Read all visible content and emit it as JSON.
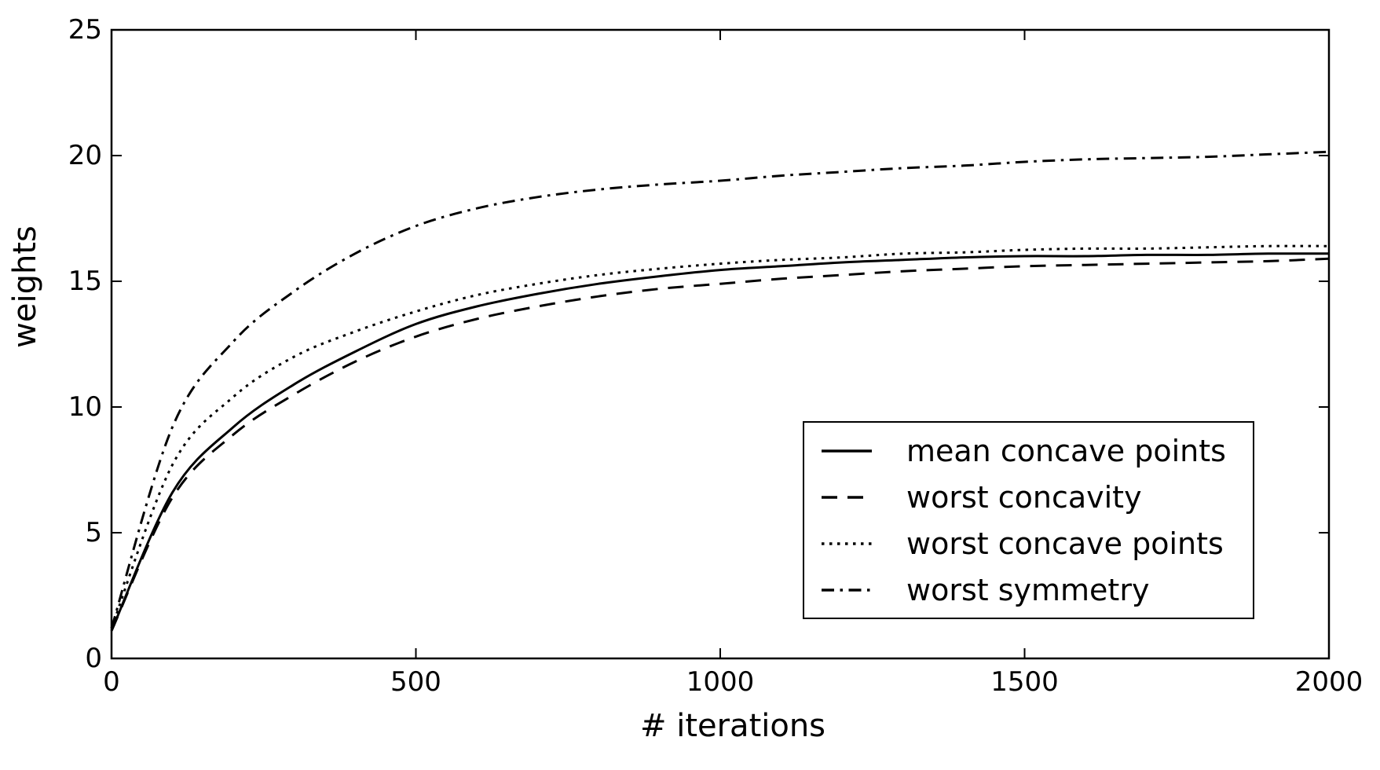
{
  "figure": {
    "background_color": "#ffffff",
    "line_color": "#000000"
  },
  "chart_data": {
    "type": "line",
    "title": "",
    "xlabel": "# iterations",
    "ylabel": "weights",
    "xlim": [
      0,
      2000
    ],
    "ylim": [
      0,
      25
    ],
    "xticks": [
      0,
      500,
      1000,
      1500,
      2000
    ],
    "yticks": [
      0,
      5,
      10,
      15,
      20,
      25
    ],
    "grid": false,
    "legend_position": "lower-right-inside",
    "x": [
      0,
      100,
      200,
      300,
      400,
      500,
      600,
      700,
      800,
      900,
      1000,
      1100,
      1200,
      1300,
      1400,
      1500,
      1600,
      1700,
      1800,
      1900,
      2000
    ],
    "series": [
      {
        "name": "mean concave points",
        "linestyle": "solid",
        "color": "#000000",
        "values": [
          1.1,
          6.6,
          9.2,
          10.9,
          12.2,
          13.3,
          14.0,
          14.5,
          14.9,
          15.2,
          15.45,
          15.6,
          15.75,
          15.85,
          15.95,
          16.0,
          16.0,
          16.05,
          16.05,
          16.1,
          16.1
        ]
      },
      {
        "name": "worst concavity",
        "linestyle": "dashed",
        "color": "#000000",
        "values": [
          1.1,
          6.4,
          8.9,
          10.5,
          11.8,
          12.8,
          13.5,
          14.0,
          14.4,
          14.7,
          14.9,
          15.1,
          15.25,
          15.4,
          15.5,
          15.6,
          15.65,
          15.7,
          15.75,
          15.8,
          15.9
        ]
      },
      {
        "name": "worst concave points",
        "linestyle": "dotted",
        "color": "#000000",
        "values": [
          1.2,
          7.7,
          10.4,
          12.0,
          13.0,
          13.8,
          14.45,
          14.9,
          15.25,
          15.5,
          15.7,
          15.85,
          15.95,
          16.1,
          16.15,
          16.25,
          16.3,
          16.3,
          16.35,
          16.4,
          16.4
        ]
      },
      {
        "name": "worst symmetry",
        "linestyle": "dashdot",
        "color": "#000000",
        "values": [
          1.2,
          9.2,
          12.6,
          14.6,
          16.1,
          17.2,
          17.9,
          18.35,
          18.65,
          18.85,
          19.0,
          19.2,
          19.35,
          19.5,
          19.6,
          19.75,
          19.85,
          19.9,
          19.95,
          20.05,
          20.15
        ]
      }
    ]
  }
}
